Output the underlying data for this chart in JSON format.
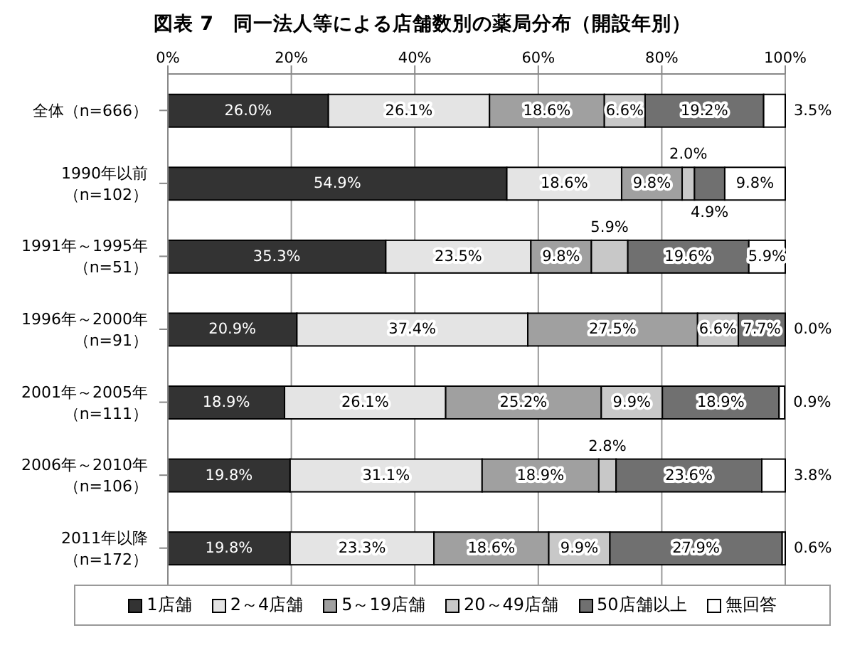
{
  "chart_data": {
    "type": "bar",
    "orientation": "horizontal",
    "stacked": true,
    "title": "図表 7　同一法人等による店舗数別の薬局分布（開設年別）",
    "categories": [
      "全体（n=666）",
      "1990年以前（n=102）",
      "1991年～1995年（n=51）",
      "1996年～2000年（n=91）",
      "2001年～2005年（n=111）",
      "2006年～2010年（n=106）",
      "2011年以降（n=172）"
    ],
    "series": [
      {
        "name": "1店舗",
        "color": "#333333",
        "values": [
          26.0,
          54.9,
          35.3,
          20.9,
          18.9,
          19.8,
          19.8
        ],
        "value_labels": [
          "26.0%",
          "54.9%",
          "35.3%",
          "20.9%",
          "18.9%",
          "19.8%",
          "19.8%"
        ]
      },
      {
        "name": "2～4店舗",
        "color": "#e4e4e4",
        "values": [
          26.1,
          18.6,
          23.5,
          37.4,
          26.1,
          31.1,
          23.3
        ],
        "value_labels": [
          "26.1%",
          "18.6%",
          "23.5%",
          "37.4%",
          "26.1%",
          "31.1%",
          "23.3%"
        ]
      },
      {
        "name": "5～19店舗",
        "color": "#a0a0a0",
        "values": [
          18.6,
          9.8,
          9.8,
          27.5,
          25.2,
          18.9,
          18.6
        ],
        "value_labels": [
          "18.6%",
          "9.8%",
          "9.8%",
          "27.5%",
          "25.2%",
          "18.9%",
          "18.6%"
        ]
      },
      {
        "name": "20～49店舗",
        "color": "#c8c8c8",
        "values": [
          6.6,
          2.0,
          5.9,
          6.6,
          9.9,
          2.8,
          9.9
        ],
        "value_labels": [
          "6.6%",
          "2.0%",
          "5.9%",
          "6.6%",
          "9.9%",
          "2.8%",
          "9.9%"
        ]
      },
      {
        "name": "50店舗以上",
        "color": "#707070",
        "values": [
          19.2,
          4.9,
          19.6,
          7.7,
          18.9,
          23.6,
          27.9
        ],
        "value_labels": [
          "19.2%",
          "4.9%",
          "19.6%",
          "7.7%",
          "18.9%",
          "23.6%",
          "27.9%"
        ]
      },
      {
        "name": "無回答",
        "color": "#ffffff",
        "values": [
          3.5,
          9.8,
          5.9,
          0.0,
          0.9,
          3.8,
          0.6
        ],
        "value_labels": [
          "3.5%",
          "9.8%",
          "5.9%",
          "0.0%",
          "0.9%",
          "3.8%",
          "0.6%"
        ]
      }
    ],
    "xlim": [
      0,
      100
    ],
    "xticks": [
      {
        "value": 0,
        "label": "0%"
      },
      {
        "value": 20,
        "label": "20%"
      },
      {
        "value": 40,
        "label": "40%"
      },
      {
        "value": 60,
        "label": "60%"
      },
      {
        "value": 80,
        "label": "80%"
      },
      {
        "value": 100,
        "label": "100%"
      }
    ],
    "grid": "x",
    "legend": "bottom"
  }
}
